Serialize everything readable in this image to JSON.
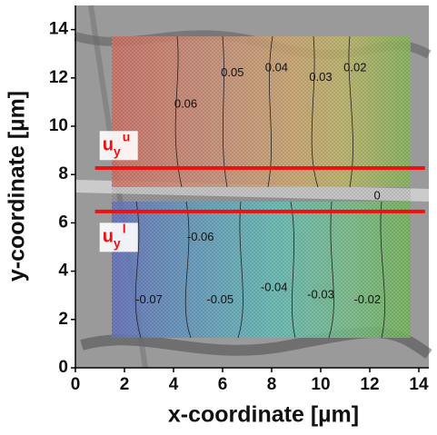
{
  "chart_data": {
    "type": "contour",
    "xlabel": "x-coordinate [µm]",
    "ylabel": "y-coordinate [µm]",
    "xlim": [
      0,
      14.4
    ],
    "ylim": [
      0,
      14.9
    ],
    "xticks": [
      0,
      2,
      4,
      6,
      8,
      10,
      12,
      14
    ],
    "yticks": [
      0,
      2,
      4,
      6,
      8,
      10,
      12,
      14
    ],
    "contour_labels": [
      {
        "text": "0.06",
        "x": 4.5,
        "y": 10.9
      },
      {
        "text": "0.05",
        "x": 6.4,
        "y": 12.2
      },
      {
        "text": "0.04",
        "x": 8.2,
        "y": 12.4
      },
      {
        "text": "0.03",
        "x": 10.0,
        "y": 12.0
      },
      {
        "text": "0.02",
        "x": 11.4,
        "y": 12.4
      },
      {
        "text": "0",
        "x": 12.3,
        "y": 7.1
      },
      {
        "text": "-0.06",
        "x": 5.1,
        "y": 5.4
      },
      {
        "text": "-0.07",
        "x": 3.0,
        "y": 2.8
      },
      {
        "text": "-0.05",
        "x": 5.9,
        "y": 2.8
      },
      {
        "text": "-0.04",
        "x": 8.1,
        "y": 3.3
      },
      {
        "text": "-0.03",
        "x": 10.0,
        "y": 3.0
      },
      {
        "text": "-0.02",
        "x": 11.9,
        "y": 2.8
      }
    ],
    "lines": [
      {
        "y": 8.27,
        "x0": 0.8,
        "x1": 14.25,
        "color": "#ee1111",
        "label": {
          "text": "u",
          "sub": "y",
          "sup": "u",
          "x": 1.1,
          "y": 9.2
        }
      },
      {
        "y": 6.47,
        "x0": 0.8,
        "x1": 14.25,
        "color": "#ee1111",
        "label": {
          "text": "u",
          "sub": "y",
          "sup": "l",
          "x": 1.1,
          "y": 5.4
        }
      }
    ]
  }
}
